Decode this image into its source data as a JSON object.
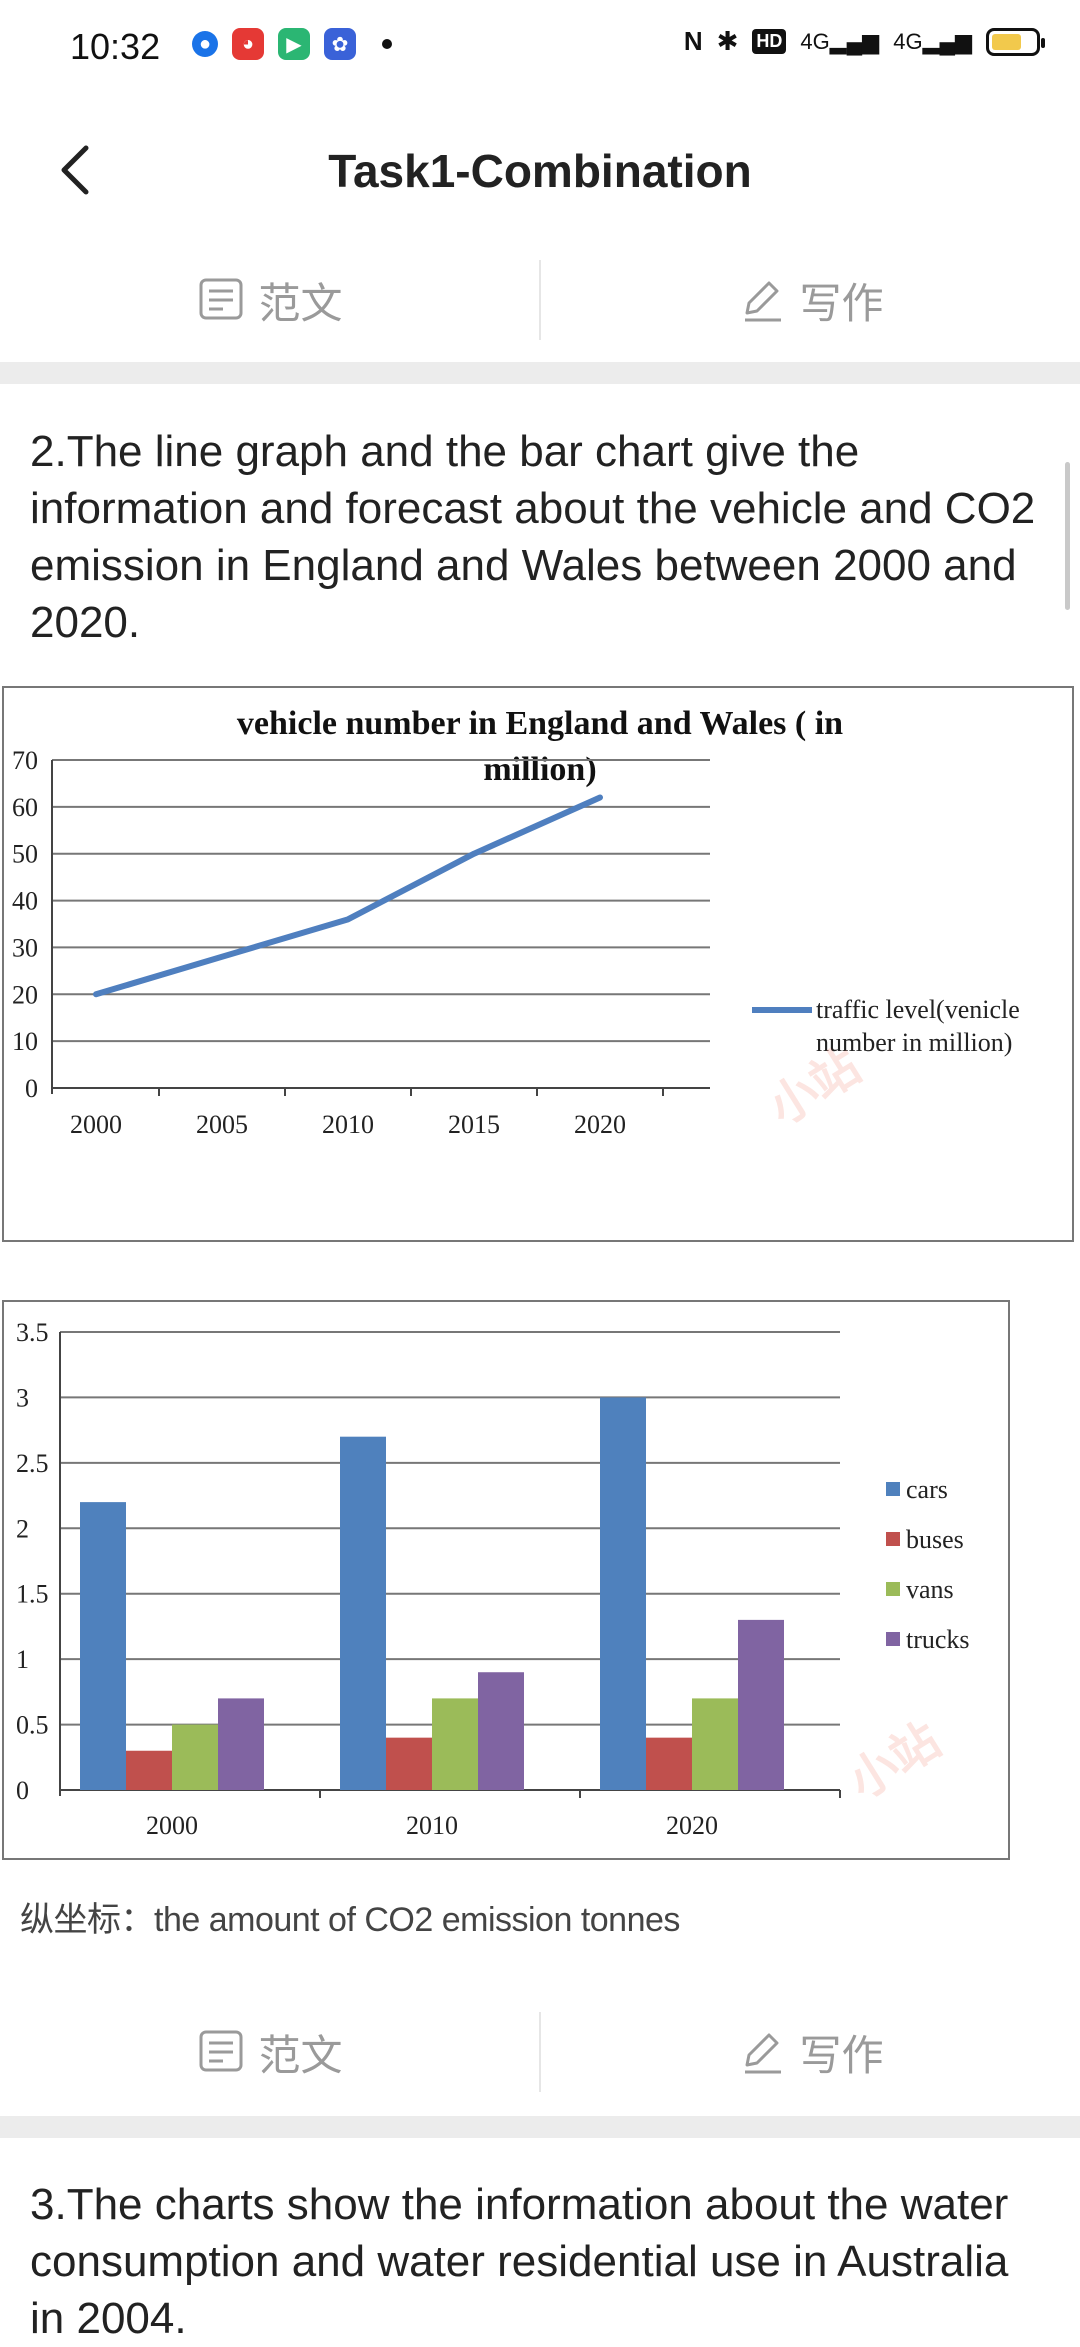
{
  "status_bar": {
    "time": "10:32",
    "right_text": [
      "HD",
      "4G",
      "4G"
    ],
    "battery_level": 0.7
  },
  "header": {
    "title": "Task1-Combination"
  },
  "actions": {
    "sample_label": "范文",
    "write_label": "写作"
  },
  "question_2": {
    "text": "2.The line graph and the bar chart give the information and forecast about the vehicle and CO2 emission in England and Wales between 2000 and 2020."
  },
  "line_chart": {
    "title_lines": [
      "vehicle number in England and Wales ( in",
      "million)"
    ],
    "y_ticks": [
      "0",
      "10",
      "20",
      "30",
      "40",
      "50",
      "60",
      "70"
    ],
    "x_ticks": [
      "2000",
      "2005",
      "2010",
      "2015",
      "2020"
    ],
    "legend_lines": [
      "traffic level(venicle",
      "number in million)"
    ]
  },
  "bar_chart": {
    "y_ticks": [
      "0",
      "0.5",
      "1",
      "1.5",
      "2",
      "2.5",
      "3",
      "3.5"
    ],
    "categories": [
      "2000",
      "2010",
      "2020"
    ],
    "legend": [
      "cars",
      "buses",
      "vans",
      "trucks"
    ]
  },
  "caption": {
    "text": "纵坐标：the amount of CO2 emission tonnes"
  },
  "question_3": {
    "text": "3.The charts show the information about the water consumption and water residential use in Australia in 2004."
  },
  "chart_data": [
    {
      "type": "line",
      "title": "vehicle number in England and Wales ( in million)",
      "x": [
        2000,
        2005,
        2010,
        2015,
        2020
      ],
      "series": [
        {
          "name": "traffic level(venicle number in million)",
          "values": [
            20,
            28,
            36,
            50,
            62
          ],
          "color": "#4f7fbf"
        }
      ],
      "ylim": [
        0,
        70
      ],
      "y_tick_step": 10,
      "grid": true,
      "legend_position": "right"
    },
    {
      "type": "bar",
      "categories": [
        "2000",
        "2010",
        "2020"
      ],
      "series": [
        {
          "name": "cars",
          "values": [
            2.2,
            2.7,
            3.0
          ],
          "color": "#4f81bd"
        },
        {
          "name": "buses",
          "values": [
            0.3,
            0.4,
            0.4
          ],
          "color": "#c0504d"
        },
        {
          "name": "vans",
          "values": [
            0.5,
            0.7,
            0.7
          ],
          "color": "#9bbb59"
        },
        {
          "name": "trucks",
          "values": [
            0.7,
            0.9,
            1.3
          ],
          "color": "#8064a2"
        }
      ],
      "ylim": [
        0,
        3.5
      ],
      "y_tick_step": 0.5,
      "grid": true,
      "legend_position": "right"
    }
  ]
}
